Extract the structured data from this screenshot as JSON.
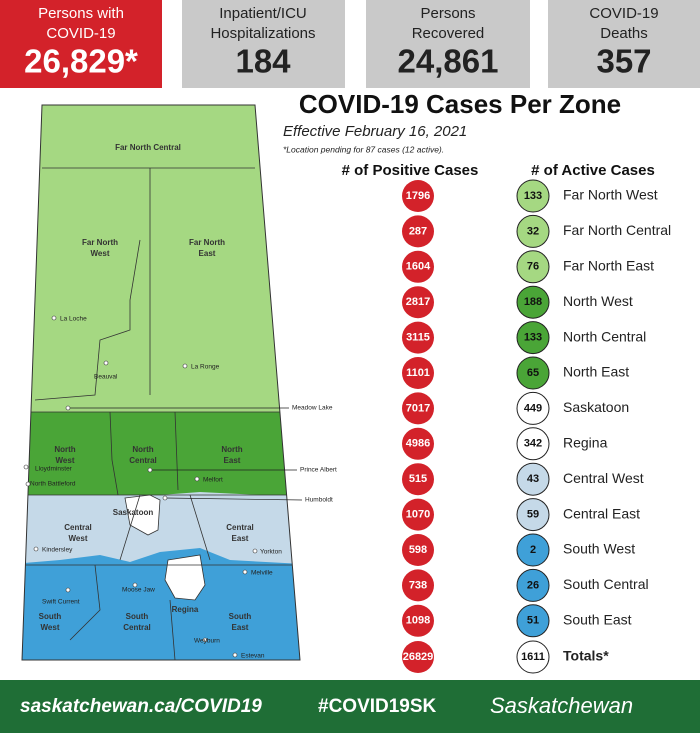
{
  "stats": [
    {
      "label": [
        "Persons with",
        "COVID-19"
      ],
      "value": "26,829*"
    },
    {
      "label": [
        "Inpatient/ICU",
        "Hospitalizations"
      ],
      "value": "184"
    },
    {
      "label": [
        "Persons",
        "Recovered"
      ],
      "value": "24,861"
    },
    {
      "label": [
        "COVID-19",
        "Deaths"
      ],
      "value": "357"
    }
  ],
  "title": "COVID-19 Cases Per Zone",
  "subtitle": "Effective February 16, 2021",
  "note": "*Location pending for 87 cases (12 active).",
  "table": {
    "headers": [
      "# of Positive Cases",
      "# of Active Cases"
    ],
    "rows": [
      [
        "Far North West",
        "1796",
        "133"
      ],
      [
        "Far North Central",
        "287",
        "32"
      ],
      [
        "Far North East",
        "1604",
        "76"
      ],
      [
        "North West",
        "2817",
        "188"
      ],
      [
        "North Central",
        "3115",
        "133"
      ],
      [
        "North East",
        "1101",
        "65"
      ],
      [
        "Saskatoon",
        "7017",
        "449"
      ],
      [
        "Regina",
        "4986",
        "342"
      ],
      [
        "Central West",
        "515",
        "43"
      ],
      [
        "Central East",
        "1070",
        "59"
      ],
      [
        "South West",
        "598",
        "2"
      ],
      [
        "South Central",
        "738",
        "26"
      ],
      [
        "South East",
        "1098",
        "51"
      ]
    ],
    "totals": [
      "Totals*",
      "26829",
      "1611"
    ]
  },
  "map": {
    "zones": [
      [
        "Far North Central"
      ],
      [
        "Far North",
        "West"
      ],
      [
        "Far North",
        "East"
      ],
      [
        "North",
        "West"
      ],
      [
        "North",
        "Central"
      ],
      [
        "North",
        "East"
      ],
      [
        "Saskatoon"
      ],
      [
        "Central",
        "West"
      ],
      [
        "Central",
        "East"
      ],
      [
        "Regina"
      ],
      [
        "South",
        "West"
      ],
      [
        "South",
        "Central"
      ],
      [
        "South",
        "East"
      ]
    ],
    "towns": [
      "La Loche",
      "Beauval",
      "La Ronge",
      "Meadow Lake",
      "Lloydminster",
      "North Battleford",
      "Prince Albert",
      "Melfort",
      "Humboldt",
      "Kindersley",
      "Yorkton",
      "Melville",
      "Swift Current",
      "Moose Jaw",
      "Weyburn",
      "Estevan"
    ]
  },
  "footer": [
    "saskatchewan.ca/COVID19",
    "#COVID19SK",
    "Saskatchewan"
  ]
}
